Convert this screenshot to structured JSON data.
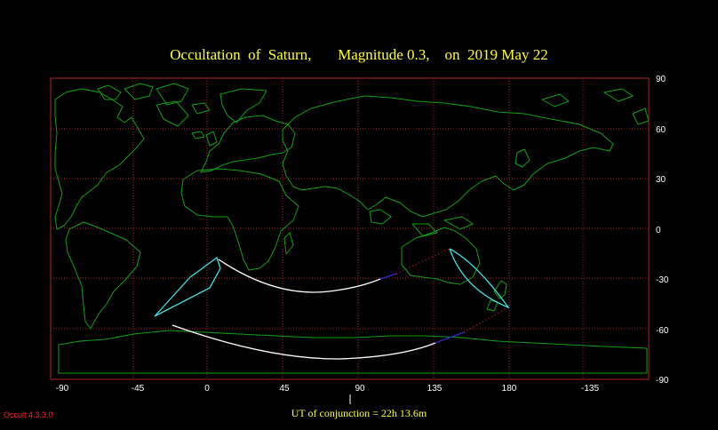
{
  "title": "Occultation  of  Saturn,       Magnitude 0.3,    on  2019 May 22",
  "map": {
    "lon_ticks": [
      "-90",
      "-45",
      "0",
      "45",
      "90",
      "135",
      "180",
      "-135"
    ],
    "lat_ticks": [
      "90",
      "60",
      "30",
      "0",
      "-30",
      "-60",
      "-90"
    ],
    "colors": {
      "grid": "#b02020",
      "coast": "#12a012",
      "limit": "#ffffff",
      "rise_set": "#40e0e0",
      "daylight": "#2a2acc",
      "twilight": "#cc2222"
    }
  },
  "conjunction_label": "UT of conjunction = 22h 13.6m",
  "version": "Occult 4.3.3.0"
}
